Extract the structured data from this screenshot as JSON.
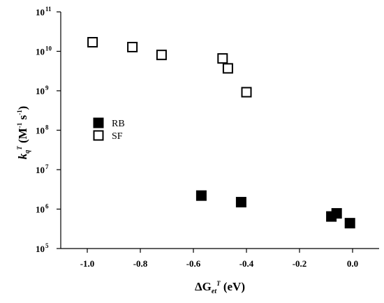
{
  "chart_data": {
    "type": "scatter",
    "x_axis": {
      "range": [
        -1.1,
        0.1
      ],
      "ticks": [
        -1.0,
        -0.8,
        -0.6,
        -0.4,
        -0.2,
        0.0
      ],
      "tick_labels": [
        "-1.0",
        "-0.8",
        "-0.6",
        "-0.4",
        "-0.2",
        "0.0"
      ],
      "label": {
        "main": "ΔG",
        "sub": "et",
        "sup": "T",
        "unit": " (eV)"
      }
    },
    "y_axis": {
      "scale": "log",
      "range": [
        100000,
        100000000000
      ],
      "tick_exponents": [
        5,
        6,
        7,
        8,
        9,
        10,
        11
      ],
      "tick_base": "10",
      "label": {
        "main": "k",
        "sub": "q",
        "sup": "T",
        "unit": " (M",
        "unit_exp1": "-1",
        "unit_mid": " s",
        "unit_exp2": "-1",
        "unit_end": ")"
      }
    },
    "legend": {
      "position": "middle-left",
      "entries": [
        {
          "name": "RB",
          "marker": "filled-square"
        },
        {
          "name": "SF",
          "marker": "open-square"
        }
      ]
    },
    "series": [
      {
        "name": "RB",
        "marker": "filled-square",
        "points": [
          {
            "x": -0.57,
            "y": 2200000
          },
          {
            "x": -0.42,
            "y": 1500000
          },
          {
            "x": -0.08,
            "y": 650000
          },
          {
            "x": -0.06,
            "y": 780000
          },
          {
            "x": -0.01,
            "y": 440000
          }
        ]
      },
      {
        "name": "SF",
        "marker": "open-square",
        "points": [
          {
            "x": -0.98,
            "y": 17000000000
          },
          {
            "x": -0.83,
            "y": 12800000000
          },
          {
            "x": -0.72,
            "y": 8100000000
          },
          {
            "x": -0.49,
            "y": 6600000000
          },
          {
            "x": -0.47,
            "y": 3700000000
          },
          {
            "x": -0.4,
            "y": 920000000
          }
        ]
      }
    ],
    "grid": false,
    "colors": {
      "marker": "#000000",
      "background": "#ffffff"
    }
  }
}
